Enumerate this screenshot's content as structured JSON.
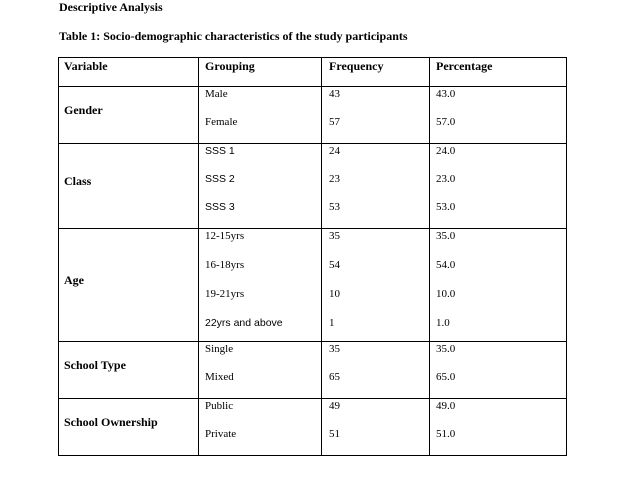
{
  "section_heading": "Descriptive Analysis",
  "table_caption": "Table 1: Socio-demographic characteristics of the study participants",
  "table": {
    "headers": [
      "Variable",
      "Grouping",
      "Frequency",
      "Percentage"
    ],
    "sections": [
      {
        "variable": "Gender",
        "rows": [
          {
            "group": "Male",
            "frequency": "43",
            "percentage": "43.0"
          },
          {
            "group": "Female",
            "frequency": "57",
            "percentage": "57.0"
          }
        ]
      },
      {
        "variable": "Class",
        "rows": [
          {
            "group": "SSS 1",
            "frequency": "24",
            "percentage": "24.0"
          },
          {
            "group": "SSS 2",
            "frequency": "23",
            "percentage": "23.0"
          },
          {
            "group": "SSS 3",
            "frequency": "53",
            "percentage": "53.0"
          }
        ]
      },
      {
        "variable": "Age",
        "rows": [
          {
            "group": "12-15yrs",
            "frequency": "35",
            "percentage": "35.0"
          },
          {
            "group": "16-18yrs",
            "frequency": "54",
            "percentage": "54.0"
          },
          {
            "group": "19-21yrs",
            "frequency": "10",
            "percentage": "10.0"
          },
          {
            "group": "22yrs and above",
            "frequency": "1",
            "percentage": "1.0"
          }
        ]
      },
      {
        "variable": "School Type",
        "rows": [
          {
            "group": "Single",
            "frequency": "35",
            "percentage": "35.0"
          },
          {
            "group": "Mixed",
            "frequency": "65",
            "percentage": "65.0"
          }
        ]
      },
      {
        "variable": "School Ownership",
        "rows": [
          {
            "group": "Public",
            "frequency": "49",
            "percentage": "49.0"
          },
          {
            "group": "Private",
            "frequency": "51",
            "percentage": "51.0"
          }
        ]
      }
    ]
  }
}
